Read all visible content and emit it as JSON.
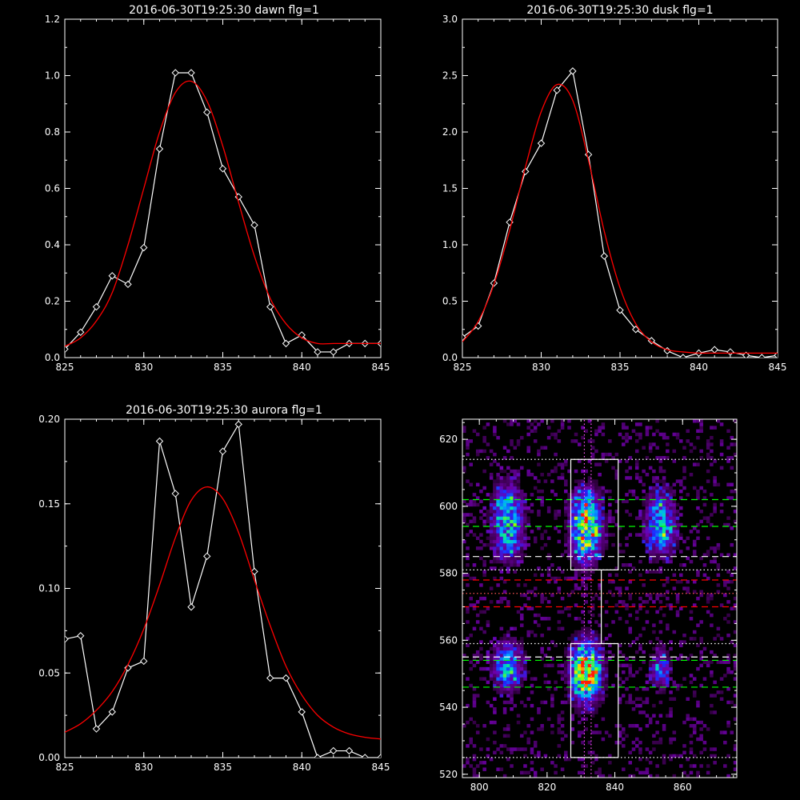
{
  "chart_data": [
    {
      "type": "line",
      "title": "2016-06-30T19:25:30 dawn flg=1",
      "xlim": [
        825,
        845
      ],
      "ylim": [
        0,
        1.2
      ],
      "xticks": [
        825,
        830,
        835,
        840,
        845
      ],
      "yticks": [
        0.0,
        0.2,
        0.4,
        0.6,
        0.8,
        1.0,
        1.2
      ],
      "ytick_labels": [
        "0.0",
        "0.2",
        "0.4",
        "0.6",
        "0.8",
        "1.0",
        "1.2"
      ],
      "series": [
        {
          "color": "#ffffff",
          "marker": "diamond",
          "x": [
            825,
            826,
            827,
            828,
            829,
            830,
            831,
            832,
            833,
            834,
            835,
            836,
            837,
            838,
            839,
            840,
            841,
            842,
            843,
            844,
            845
          ],
          "y": [
            0.03,
            0.09,
            0.18,
            0.29,
            0.26,
            0.39,
            0.74,
            1.01,
            1.01,
            0.87,
            0.67,
            0.57,
            0.47,
            0.18,
            0.05,
            0.08,
            0.02,
            0.02,
            0.05,
            0.05,
            0.05
          ]
        },
        {
          "color": "#ff0000",
          "fit": "gaussian",
          "x": [
            825,
            826,
            827,
            828,
            829,
            830,
            831,
            832,
            833,
            834,
            835,
            836,
            837,
            838,
            839,
            840,
            841,
            842,
            843,
            844,
            845
          ],
          "y": [
            0.04,
            0.07,
            0.13,
            0.23,
            0.4,
            0.6,
            0.8,
            0.94,
            0.98,
            0.91,
            0.75,
            0.55,
            0.36,
            0.21,
            0.12,
            0.07,
            0.05,
            0.05,
            0.05,
            0.05,
            0.05
          ]
        }
      ]
    },
    {
      "type": "line",
      "title": "2016-06-30T19:25:30 dusk flg=1",
      "xlim": [
        825,
        845
      ],
      "ylim": [
        0,
        3.0
      ],
      "xticks": [
        825,
        830,
        835,
        840,
        845
      ],
      "yticks": [
        0.0,
        0.5,
        1.0,
        1.5,
        2.0,
        2.5,
        3.0
      ],
      "ytick_labels": [
        "0.0",
        "0.5",
        "1.0",
        "1.5",
        "2.0",
        "2.5",
        "3.0"
      ],
      "series": [
        {
          "color": "#ffffff",
          "marker": "diamond",
          "x": [
            825,
            826,
            827,
            828,
            829,
            830,
            831,
            832,
            833,
            834,
            835,
            836,
            837,
            838,
            839,
            840,
            841,
            842,
            843,
            844,
            845
          ],
          "y": [
            0.18,
            0.28,
            0.66,
            1.2,
            1.65,
            1.9,
            2.37,
            2.54,
            1.8,
            0.9,
            0.42,
            0.25,
            0.15,
            0.06,
            0.0,
            0.04,
            0.07,
            0.05,
            0.02,
            0.0,
            0.02
          ]
        },
        {
          "color": "#ff0000",
          "fit": "gaussian",
          "x": [
            825,
            826,
            827,
            828,
            829,
            830,
            831,
            832,
            833,
            834,
            835,
            836,
            837,
            838,
            839,
            840,
            841,
            842,
            843,
            844,
            845
          ],
          "y": [
            0.14,
            0.32,
            0.65,
            1.13,
            1.69,
            2.18,
            2.42,
            2.28,
            1.75,
            1.12,
            0.62,
            0.3,
            0.14,
            0.07,
            0.05,
            0.04,
            0.04,
            0.04,
            0.04,
            0.04,
            0.04
          ]
        }
      ]
    },
    {
      "type": "line",
      "title": "2016-06-30T19:25:30 aurora flg=1",
      "xlim": [
        825,
        845
      ],
      "ylim": [
        0,
        0.2
      ],
      "xticks": [
        825,
        830,
        835,
        840,
        845
      ],
      "yticks": [
        0.0,
        0.05,
        0.1,
        0.15,
        0.2
      ],
      "ytick_labels": [
        "0.00",
        "0.05",
        "0.10",
        "0.15",
        "0.20"
      ],
      "series": [
        {
          "color": "#ffffff",
          "marker": "diamond",
          "x": [
            825,
            826,
            827,
            828,
            829,
            830,
            831,
            832,
            833,
            834,
            835,
            836,
            837,
            838,
            839,
            840,
            841,
            842,
            843,
            844,
            845
          ],
          "y": [
            0.07,
            0.072,
            0.017,
            0.027,
            0.053,
            0.057,
            0.187,
            0.156,
            0.089,
            0.119,
            0.181,
            0.197,
            0.11,
            0.047,
            0.047,
            0.027,
            0.0,
            0.004,
            0.004,
            0.0,
            0.0
          ]
        },
        {
          "color": "#ff0000",
          "fit": "gaussian",
          "x": [
            825,
            826,
            827,
            828,
            829,
            830,
            831,
            832,
            833,
            834,
            835,
            836,
            837,
            838,
            839,
            840,
            841,
            842,
            843,
            844,
            845
          ],
          "y": [
            0.015,
            0.02,
            0.028,
            0.039,
            0.055,
            0.076,
            0.102,
            0.13,
            0.152,
            0.16,
            0.153,
            0.133,
            0.105,
            0.078,
            0.054,
            0.037,
            0.025,
            0.018,
            0.014,
            0.012,
            0.011
          ]
        }
      ]
    },
    {
      "type": "heatmap",
      "xlim": [
        795,
        876
      ],
      "ylim": [
        519,
        626
      ],
      "xticks": [
        800,
        820,
        840,
        860
      ],
      "yticks": [
        520,
        540,
        560,
        580,
        600,
        620
      ],
      "colormap": "rainbow-on-black",
      "blobs": [
        {
          "x": 808,
          "y": 598,
          "sx": 3,
          "sy": 6,
          "peak": 0.55
        },
        {
          "x": 808,
          "y": 588,
          "sx": 3,
          "sy": 4,
          "peak": 0.35
        },
        {
          "x": 831,
          "y": 598,
          "sx": 3,
          "sy": 5,
          "peak": 0.6
        },
        {
          "x": 831,
          "y": 589,
          "sx": 3,
          "sy": 5,
          "peak": 0.6
        },
        {
          "x": 853,
          "y": 598,
          "sx": 3,
          "sy": 5,
          "peak": 0.4
        },
        {
          "x": 853,
          "y": 590,
          "sx": 3,
          "sy": 4,
          "peak": 0.4
        },
        {
          "x": 808,
          "y": 552,
          "sx": 3,
          "sy": 5,
          "peak": 0.55
        },
        {
          "x": 831,
          "y": 550,
          "sx": 3,
          "sy": 6,
          "peak": 1.0
        },
        {
          "x": 853,
          "y": 551,
          "sx": 2,
          "sy": 4,
          "peak": 0.4
        }
      ],
      "noise": 0.1,
      "rectangles": [
        {
          "x0": 827,
          "x1": 841,
          "y0": 581,
          "y1": 614,
          "color": "#ffffff"
        },
        {
          "x0": 827,
          "x1": 841,
          "y0": 525,
          "y1": 559,
          "color": "#ffffff"
        }
      ],
      "vlines": [
        {
          "x": 831,
          "color": "#ff55ff",
          "style": "dotted"
        },
        {
          "x": 833,
          "color": "#ff55ff",
          "style": "dotted"
        },
        {
          "x": 836,
          "color": "#ffffff",
          "style": "solid",
          "y0": 559,
          "y1": 581
        }
      ],
      "hlines": [
        {
          "y": 614,
          "color": "#ffffff",
          "style": "dotted"
        },
        {
          "y": 602,
          "color": "#00ff00",
          "style": "dashed"
        },
        {
          "y": 594,
          "color": "#00ff00",
          "style": "dashed"
        },
        {
          "y": 585,
          "color": "#ffffff",
          "style": "dashed"
        },
        {
          "y": 581,
          "color": "#ffffff",
          "style": "dotted"
        },
        {
          "y": 578,
          "color": "#ff0000",
          "style": "dashed"
        },
        {
          "y": 574,
          "color": "#ff5555",
          "style": "dotted"
        },
        {
          "y": 570,
          "color": "#ff0000",
          "style": "dashed"
        },
        {
          "y": 559,
          "color": "#ffffff",
          "style": "dotted"
        },
        {
          "y": 555,
          "color": "#ffffff",
          "style": "dashed"
        },
        {
          "y": 554,
          "color": "#00ff00",
          "style": "dashed"
        },
        {
          "y": 546,
          "color": "#00ff00",
          "style": "dashed"
        },
        {
          "y": 525,
          "color": "#ffffff",
          "style": "dotted"
        }
      ]
    }
  ]
}
